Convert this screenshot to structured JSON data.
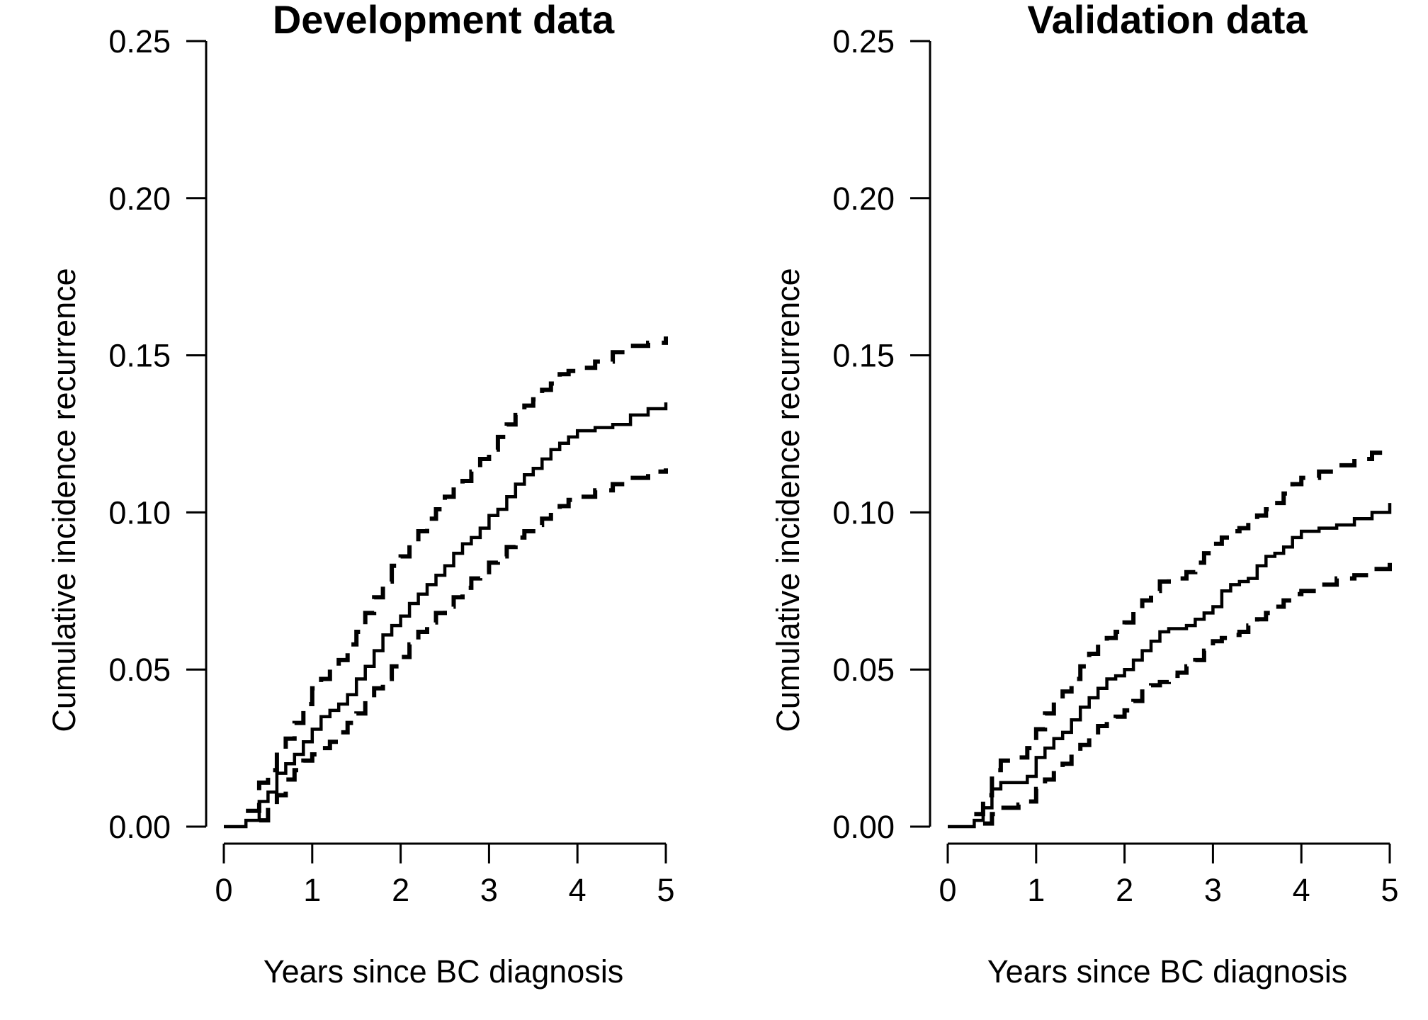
{
  "chart_data": [
    {
      "type": "line",
      "title": "Development data",
      "xlabel": "Years since BC diagnosis",
      "ylabel": "Cumulative incidence recurrence",
      "xlim": [
        0,
        5
      ],
      "ylim": [
        0,
        0.25
      ],
      "x_ticks": [
        "0",
        "1",
        "2",
        "3",
        "4",
        "5"
      ],
      "y_ticks": [
        "0.00",
        "0.05",
        "0.10",
        "0.15",
        "0.20",
        "0.25"
      ],
      "grid": false,
      "step": true,
      "series": [
        {
          "style": "solid",
          "x": [
            0,
            0.25,
            0.4,
            0.5,
            0.6,
            0.7,
            0.8,
            0.9,
            1.0,
            1.1,
            1.2,
            1.3,
            1.4,
            1.5,
            1.6,
            1.7,
            1.8,
            1.9,
            2.0,
            2.1,
            2.2,
            2.3,
            2.4,
            2.5,
            2.6,
            2.7,
            2.8,
            2.9,
            3.0,
            3.1,
            3.2,
            3.3,
            3.4,
            3.5,
            3.6,
            3.7,
            3.8,
            3.9,
            4.0,
            4.2,
            4.4,
            4.6,
            4.8,
            5.0
          ],
          "y": [
            0,
            0.002,
            0.008,
            0.011,
            0.017,
            0.02,
            0.023,
            0.027,
            0.031,
            0.035,
            0.037,
            0.039,
            0.042,
            0.047,
            0.051,
            0.056,
            0.061,
            0.064,
            0.067,
            0.071,
            0.074,
            0.077,
            0.08,
            0.083,
            0.087,
            0.09,
            0.092,
            0.095,
            0.099,
            0.101,
            0.105,
            0.109,
            0.112,
            0.114,
            0.117,
            0.12,
            0.122,
            0.124,
            0.126,
            0.127,
            0.128,
            0.131,
            0.133,
            0.135
          ]
        },
        {
          "style": "dashed",
          "x": [
            0.25,
            0.4,
            0.5,
            0.6,
            0.7,
            0.8,
            0.9,
            1.0,
            1.1,
            1.2,
            1.3,
            1.4,
            1.5,
            1.6,
            1.7,
            1.8,
            1.9,
            2.0,
            2.1,
            2.2,
            2.3,
            2.4,
            2.5,
            2.6,
            2.7,
            2.8,
            2.9,
            3.0,
            3.1,
            3.2,
            3.3,
            3.4,
            3.5,
            3.6,
            3.7,
            3.8,
            3.9,
            4.0,
            4.2,
            4.4,
            4.6,
            4.8,
            5.0
          ],
          "y": [
            0.005,
            0.014,
            0.018,
            0.024,
            0.028,
            0.033,
            0.039,
            0.044,
            0.047,
            0.05,
            0.053,
            0.058,
            0.062,
            0.068,
            0.073,
            0.078,
            0.083,
            0.086,
            0.09,
            0.094,
            0.098,
            0.101,
            0.105,
            0.108,
            0.11,
            0.113,
            0.117,
            0.12,
            0.124,
            0.128,
            0.131,
            0.134,
            0.136,
            0.139,
            0.141,
            0.144,
            0.145,
            0.146,
            0.148,
            0.151,
            0.153,
            0.154,
            0.156
          ]
        },
        {
          "style": "dashed",
          "x": [
            0.4,
            0.5,
            0.6,
            0.7,
            0.8,
            0.9,
            1.0,
            1.1,
            1.2,
            1.3,
            1.4,
            1.5,
            1.6,
            1.7,
            1.8,
            1.9,
            2.0,
            2.1,
            2.2,
            2.3,
            2.4,
            2.5,
            2.6,
            2.7,
            2.8,
            2.9,
            3.0,
            3.1,
            3.2,
            3.3,
            3.4,
            3.5,
            3.6,
            3.7,
            3.8,
            3.9,
            4.0,
            4.2,
            4.4,
            4.6,
            4.8,
            5.0
          ],
          "y": [
            0.002,
            0.006,
            0.01,
            0.015,
            0.018,
            0.021,
            0.023,
            0.025,
            0.027,
            0.03,
            0.033,
            0.036,
            0.04,
            0.044,
            0.047,
            0.051,
            0.054,
            0.058,
            0.062,
            0.065,
            0.068,
            0.07,
            0.073,
            0.076,
            0.079,
            0.081,
            0.084,
            0.086,
            0.089,
            0.092,
            0.094,
            0.096,
            0.098,
            0.1,
            0.102,
            0.104,
            0.105,
            0.107,
            0.109,
            0.111,
            0.113,
            0.114
          ]
        }
      ]
    },
    {
      "type": "line",
      "title": "Validation data",
      "xlabel": "Years since BC diagnosis",
      "ylabel": "Cumulative incidence recurrence",
      "xlim": [
        0,
        5
      ],
      "ylim": [
        0,
        0.25
      ],
      "x_ticks": [
        "0",
        "1",
        "2",
        "3",
        "4",
        "5"
      ],
      "y_ticks": [
        "0.00",
        "0.05",
        "0.10",
        "0.15",
        "0.20",
        "0.25"
      ],
      "grid": false,
      "step": true,
      "series": [
        {
          "style": "solid",
          "x": [
            0,
            0.3,
            0.4,
            0.5,
            0.6,
            0.8,
            0.9,
            1.0,
            1.1,
            1.2,
            1.3,
            1.4,
            1.5,
            1.6,
            1.7,
            1.8,
            1.9,
            2.0,
            2.1,
            2.2,
            2.3,
            2.4,
            2.5,
            2.6,
            2.7,
            2.8,
            2.9,
            3.0,
            3.1,
            3.2,
            3.3,
            3.4,
            3.5,
            3.6,
            3.7,
            3.8,
            3.9,
            4.0,
            4.2,
            4.4,
            4.6,
            4.8,
            5.0
          ],
          "y": [
            0,
            0.002,
            0.006,
            0.012,
            0.014,
            0.014,
            0.016,
            0.022,
            0.025,
            0.028,
            0.03,
            0.034,
            0.038,
            0.041,
            0.044,
            0.047,
            0.048,
            0.05,
            0.053,
            0.056,
            0.059,
            0.062,
            0.063,
            0.063,
            0.064,
            0.066,
            0.068,
            0.07,
            0.075,
            0.077,
            0.078,
            0.079,
            0.083,
            0.086,
            0.087,
            0.089,
            0.092,
            0.094,
            0.095,
            0.096,
            0.098,
            0.1,
            0.103
          ]
        },
        {
          "style": "dashed",
          "x": [
            0.3,
            0.4,
            0.5,
            0.6,
            0.8,
            0.9,
            1.0,
            1.1,
            1.2,
            1.3,
            1.4,
            1.5,
            1.6,
            1.7,
            1.8,
            1.9,
            2.0,
            2.1,
            2.2,
            2.3,
            2.4,
            2.5,
            2.6,
            2.7,
            2.8,
            2.9,
            3.0,
            3.1,
            3.2,
            3.3,
            3.4,
            3.5,
            3.6,
            3.7,
            3.8,
            3.9,
            4.0,
            4.2,
            4.4,
            4.6,
            4.8,
            5.0
          ],
          "y": [
            0.004,
            0.01,
            0.018,
            0.021,
            0.022,
            0.025,
            0.031,
            0.036,
            0.04,
            0.043,
            0.047,
            0.051,
            0.055,
            0.058,
            0.06,
            0.062,
            0.065,
            0.069,
            0.072,
            0.075,
            0.078,
            0.079,
            0.079,
            0.081,
            0.084,
            0.087,
            0.09,
            0.092,
            0.094,
            0.095,
            0.097,
            0.099,
            0.101,
            0.103,
            0.106,
            0.109,
            0.111,
            0.113,
            0.115,
            0.117,
            0.119,
            0.12
          ]
        },
        {
          "style": "dashed",
          "x": [
            0.4,
            0.5,
            0.6,
            0.8,
            0.9,
            1.0,
            1.1,
            1.2,
            1.3,
            1.4,
            1.5,
            1.6,
            1.7,
            1.8,
            1.9,
            2.0,
            2.1,
            2.2,
            2.3,
            2.4,
            2.5,
            2.6,
            2.7,
            2.8,
            2.9,
            3.0,
            3.1,
            3.2,
            3.3,
            3.4,
            3.5,
            3.6,
            3.7,
            3.8,
            3.9,
            4.0,
            4.2,
            4.4,
            4.6,
            4.8,
            5.0
          ],
          "y": [
            0.001,
            0.004,
            0.006,
            0.007,
            0.008,
            0.012,
            0.015,
            0.018,
            0.02,
            0.023,
            0.026,
            0.029,
            0.032,
            0.034,
            0.035,
            0.037,
            0.04,
            0.043,
            0.045,
            0.046,
            0.048,
            0.049,
            0.051,
            0.053,
            0.056,
            0.059,
            0.06,
            0.061,
            0.062,
            0.064,
            0.066,
            0.068,
            0.07,
            0.072,
            0.074,
            0.075,
            0.077,
            0.079,
            0.08,
            0.082,
            0.085
          ]
        }
      ]
    }
  ]
}
